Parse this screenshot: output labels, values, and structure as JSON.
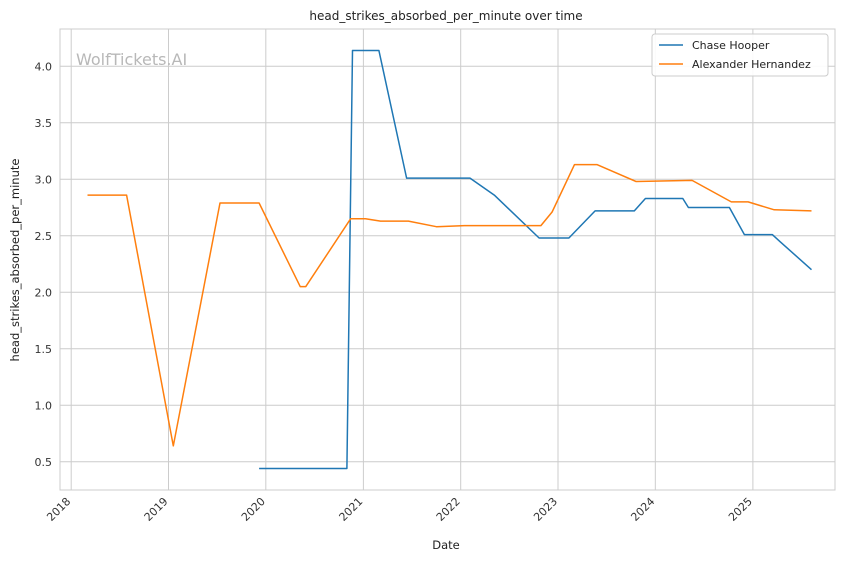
{
  "chart_data": {
    "type": "line",
    "title": "head_strikes_absorbed_per_minute over time",
    "xlabel": "Date",
    "ylabel": "head_strikes_absorbed_per_minute",
    "watermark": "WolfTickets.AI",
    "xlim": [
      "2017-11-20",
      "2025-11-05"
    ],
    "ylim": [
      0.25,
      4.33
    ],
    "x_ticks": [
      "2018",
      "2019",
      "2020",
      "2021",
      "2022",
      "2023",
      "2024",
      "2025"
    ],
    "y_ticks": [
      0.5,
      1.0,
      1.5,
      2.0,
      2.5,
      3.0,
      3.5,
      4.0
    ],
    "grid": true,
    "legend_position": "top-right",
    "colors": {
      "grid": "#cccccc",
      "spine": "#cccccc"
    },
    "series": [
      {
        "name": "Chase Hooper",
        "color": "#1f77b4",
        "points": [
          [
            "2019-12-07",
            0.44
          ],
          [
            "2020-10-31",
            0.44
          ],
          [
            "2020-11-21",
            4.14
          ],
          [
            "2021-02-28",
            4.14
          ],
          [
            "2021-06-12",
            3.01
          ],
          [
            "2022-02-05",
            3.01
          ],
          [
            "2022-05-07",
            2.86
          ],
          [
            "2022-10-22",
            2.48
          ],
          [
            "2023-02-11",
            2.48
          ],
          [
            "2023-05-20",
            2.72
          ],
          [
            "2023-10-14",
            2.72
          ],
          [
            "2023-11-25",
            2.83
          ],
          [
            "2024-04-13",
            2.83
          ],
          [
            "2024-05-04",
            2.75
          ],
          [
            "2024-10-05",
            2.75
          ],
          [
            "2024-11-30",
            2.51
          ],
          [
            "2025-03-15",
            2.51
          ],
          [
            "2025-04-12",
            2.45
          ],
          [
            "2025-08-09",
            2.2
          ]
        ]
      },
      {
        "name": "Alexander Hernandez",
        "color": "#ff7f0e",
        "points": [
          [
            "2018-03-03",
            2.86
          ],
          [
            "2018-07-28",
            2.86
          ],
          [
            "2019-01-19",
            0.64
          ],
          [
            "2019-07-13",
            2.79
          ],
          [
            "2019-12-07",
            2.79
          ],
          [
            "2020-05-09",
            2.05
          ],
          [
            "2020-05-30",
            2.05
          ],
          [
            "2020-11-14",
            2.65
          ],
          [
            "2021-01-09",
            2.65
          ],
          [
            "2021-03-06",
            2.63
          ],
          [
            "2021-06-19",
            2.63
          ],
          [
            "2021-10-02",
            2.58
          ],
          [
            "2022-01-15",
            2.59
          ],
          [
            "2022-10-29",
            2.59
          ],
          [
            "2022-12-10",
            2.71
          ],
          [
            "2023-03-04",
            3.13
          ],
          [
            "2023-05-27",
            3.13
          ],
          [
            "2023-10-21",
            2.98
          ],
          [
            "2024-05-18",
            2.99
          ],
          [
            "2024-10-12",
            2.8
          ],
          [
            "2024-12-14",
            2.8
          ],
          [
            "2025-03-22",
            2.73
          ],
          [
            "2025-08-09",
            2.72
          ]
        ]
      }
    ]
  }
}
